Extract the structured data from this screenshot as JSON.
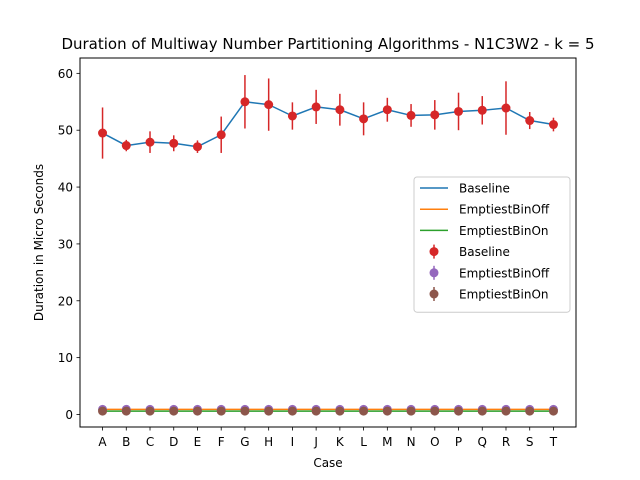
{
  "chart_data": {
    "type": "line",
    "title": "Duration of Multiway Number Partitioning Algorithms - N1C3W2 - k = 5",
    "xlabel": "Case",
    "ylabel": "Duration in Micro Seconds",
    "categories": [
      "A",
      "B",
      "C",
      "D",
      "E",
      "F",
      "G",
      "H",
      "I",
      "J",
      "K",
      "L",
      "M",
      "N",
      "O",
      "P",
      "Q",
      "R",
      "S",
      "T"
    ],
    "ylim": [
      -2.2,
      62.7
    ],
    "yticks": [
      0,
      10,
      20,
      30,
      40,
      50,
      60
    ],
    "grid": false,
    "legend_position": "center-right",
    "lines": [
      {
        "name": "Baseline",
        "color": "#1f77b4",
        "values": [
          49.5,
          47.3,
          47.9,
          47.7,
          47.1,
          49.2,
          55.0,
          54.5,
          52.5,
          54.1,
          53.6,
          52.0,
          53.6,
          52.6,
          52.7,
          53.3,
          53.5,
          53.9,
          51.7,
          51.0
        ]
      },
      {
        "name": "EmptiestBinOff",
        "color": "#ff7f0e",
        "values": [
          0.9,
          0.9,
          0.9,
          0.9,
          0.9,
          0.9,
          0.9,
          0.9,
          0.9,
          0.9,
          0.9,
          0.9,
          0.9,
          0.9,
          0.9,
          0.9,
          0.9,
          0.9,
          0.9,
          0.9
        ]
      },
      {
        "name": "EmptiestBinOn",
        "color": "#2ca02c",
        "values": [
          0.6,
          0.6,
          0.6,
          0.6,
          0.6,
          0.6,
          0.6,
          0.6,
          0.6,
          0.6,
          0.6,
          0.6,
          0.6,
          0.6,
          0.6,
          0.6,
          0.6,
          0.6,
          0.6,
          0.6
        ]
      }
    ],
    "errorbars": [
      {
        "name": "Baseline",
        "color": "#d62728",
        "values": [
          49.5,
          47.3,
          47.9,
          47.7,
          47.1,
          49.2,
          55.0,
          54.5,
          52.5,
          54.1,
          53.6,
          52.0,
          53.6,
          52.6,
          52.7,
          53.3,
          53.5,
          53.9,
          51.7,
          51.0
        ],
        "errors": [
          4.5,
          1.0,
          1.9,
          1.4,
          1.1,
          3.2,
          4.7,
          4.6,
          2.4,
          3.0,
          2.8,
          2.9,
          2.1,
          2.0,
          2.6,
          3.3,
          2.5,
          4.7,
          1.5,
          1.2
        ]
      },
      {
        "name": "EmptiestBinOff",
        "color": "#9467bd",
        "values": [
          0.9,
          0.9,
          0.9,
          0.9,
          0.9,
          0.9,
          0.9,
          0.9,
          0.9,
          0.9,
          0.9,
          0.9,
          0.9,
          0.9,
          0.9,
          0.9,
          0.9,
          0.9,
          0.9,
          0.9
        ],
        "errors": [
          0.1,
          0.1,
          0.1,
          0.1,
          0.1,
          0.1,
          0.1,
          0.1,
          0.1,
          0.1,
          0.1,
          0.1,
          0.1,
          0.1,
          0.1,
          0.1,
          0.1,
          0.1,
          0.1,
          0.1
        ]
      },
      {
        "name": "EmptiestBinOn",
        "color": "#8c564b",
        "values": [
          0.6,
          0.6,
          0.6,
          0.6,
          0.6,
          0.6,
          0.6,
          0.6,
          0.6,
          0.6,
          0.6,
          0.6,
          0.6,
          0.6,
          0.6,
          0.6,
          0.6,
          0.6,
          0.6,
          0.6
        ],
        "errors": [
          0.1,
          0.1,
          0.1,
          0.1,
          0.1,
          0.1,
          0.1,
          0.1,
          0.1,
          0.1,
          0.1,
          0.1,
          0.1,
          0.1,
          0.1,
          0.1,
          0.1,
          0.1,
          0.1,
          0.1
        ]
      }
    ]
  }
}
